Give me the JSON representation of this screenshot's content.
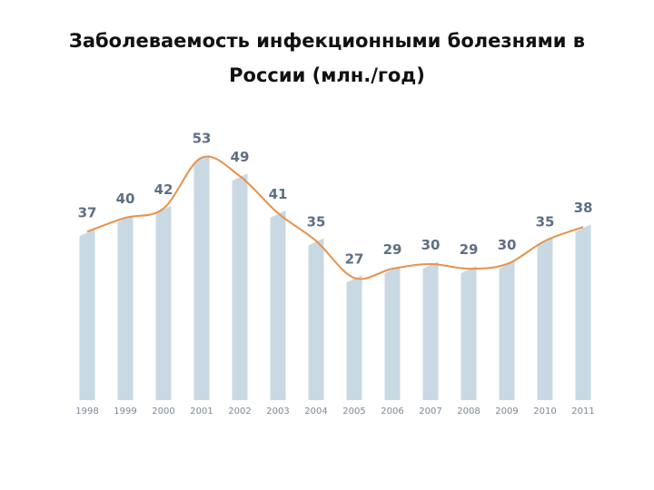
{
  "page": {
    "title": "Заболеваемость инфекционными болезнями в России (млн./год)"
  },
  "chart_data": {
    "type": "bar",
    "title": "Заболеваемость инфекционными болезнями в России (млн./год)",
    "xlabel": "",
    "ylabel": "",
    "categories": [
      "1998",
      "1999",
      "2000",
      "2001",
      "2002",
      "2003",
      "2004",
      "2005",
      "2006",
      "2007",
      "2008",
      "2009",
      "2010",
      "2011"
    ],
    "series": [
      {
        "values": [
          37,
          40,
          42,
          53,
          49,
          41,
          35,
          27,
          29,
          30,
          29,
          30,
          35,
          38
        ]
      }
    ],
    "trend_line": true,
    "ylim": [
      0,
      60
    ],
    "grid": false,
    "legend": "none",
    "colors": {
      "bar": "#c9d9e4",
      "trend": "#e8914a",
      "value_label": "#5e6f84",
      "year_label": "#7a8898"
    }
  }
}
